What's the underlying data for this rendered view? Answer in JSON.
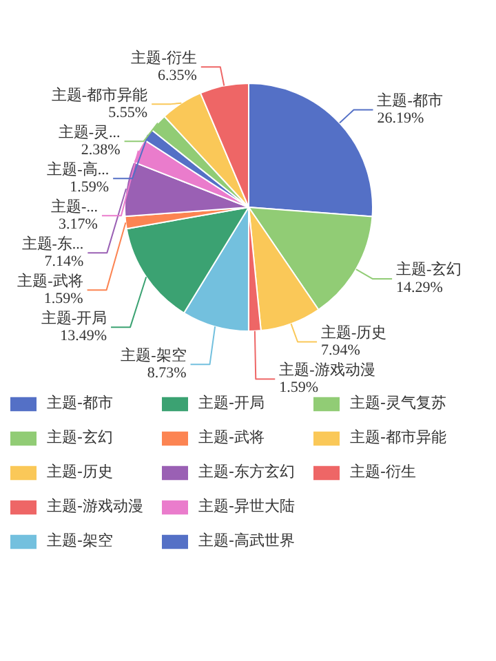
{
  "chart_data": {
    "type": "pie",
    "categories": [
      "主题-都市",
      "主题-玄幻",
      "主题-历史",
      "主题-游戏动漫",
      "主题-架空",
      "主题-开局",
      "主题-武将",
      "主题-东方玄幻",
      "主题-异世大陆",
      "主题-高武世界",
      "主题-灵气复苏",
      "主题-都市异能",
      "主题-衍生"
    ],
    "values": [
      26.19,
      14.29,
      7.94,
      1.59,
      8.73,
      13.49,
      1.59,
      7.14,
      3.17,
      1.59,
      2.38,
      5.55,
      6.35
    ],
    "colors": [
      "#5470c6",
      "#91cc75",
      "#fac858",
      "#ee6666",
      "#73c0de",
      "#3ba272",
      "#fc8452",
      "#9a60b4",
      "#ea7ccc",
      "#5470c6",
      "#91cc75",
      "#fac858",
      "#ee6666"
    ],
    "value_labels": [
      "主题-都市\n26.19%",
      "主题-玄幻\n14.29%",
      "主题-历史\n7.94%",
      "主题-游戏动漫\n1.59%",
      "主题-架空\n8.73%",
      "主题-开局\n13.49%",
      "主题-武将\n1.59%",
      "主题-东...\n7.14%",
      "主题-...\n3.17%",
      "主题-高...\n1.59%",
      "主题-灵...\n2.38%",
      "主题-都市异能\n5.55%",
      "主题-衍生\n6.35%"
    ],
    "legend": "bottom"
  }
}
